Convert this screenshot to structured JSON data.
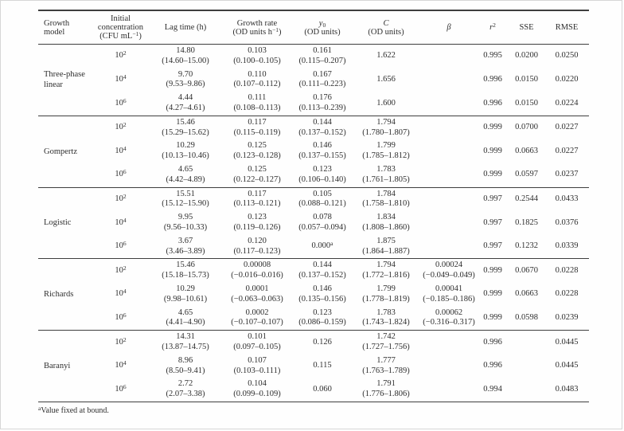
{
  "header": {
    "model": {
      "line1": "Growth",
      "line2": "model"
    },
    "concentration": {
      "line1": "Initial",
      "line2": "concentration",
      "line3_pre": "(CFU mL",
      "line3_sup": "−1",
      "line3_post": ")"
    },
    "lag_time": "Lag time (h)",
    "growth_rate": {
      "line1": "Growth rate",
      "line2_pre": "(OD units h",
      "line2_sup": "−1",
      "line2_post": ")"
    },
    "y0": {
      "symbol": "y",
      "subscript": "0",
      "line2": "(OD units)"
    },
    "c": {
      "symbol": "C",
      "line2": "(OD units)"
    },
    "beta": "β",
    "r2": {
      "symbol": "r",
      "superscript": "2"
    },
    "sse": "SSE",
    "rmse": "RMSE"
  },
  "groups": [
    {
      "model": "Three-phase linear",
      "rows": [
        {
          "conc": "10^2",
          "lag": {
            "v": "14.80",
            "ci": "(14.60–15.00)"
          },
          "rate": {
            "v": "0.103",
            "ci": "(0.100–0.105)"
          },
          "y0": {
            "v": "0.161",
            "ci": "(0.115–0.207)"
          },
          "c": "1.622",
          "beta": "",
          "r2": "0.995",
          "sse": "0.0200",
          "rmse": "0.0250"
        },
        {
          "conc": "10^4",
          "lag": {
            "v": "9.70",
            "ci": "(9.53–9.86)"
          },
          "rate": {
            "v": "0.110",
            "ci": "(0.107–0.112)"
          },
          "y0": {
            "v": "0.167",
            "ci": "(0.111–0.223)"
          },
          "c": "1.656",
          "beta": "",
          "r2": "0.996",
          "sse": "0.0150",
          "rmse": "0.0220"
        },
        {
          "conc": "10^6",
          "lag": {
            "v": "4.44",
            "ci": "(4.27–4.61)"
          },
          "rate": {
            "v": "0.111",
            "ci": "(0.108–0.113)"
          },
          "y0": {
            "v": "0.176",
            "ci": "(0.113–0.239)"
          },
          "c": "1.600",
          "beta": "",
          "r2": "0.996",
          "sse": "0.0150",
          "rmse": "0.0224"
        }
      ]
    },
    {
      "model": "Gompertz",
      "rows": [
        {
          "conc": "10^2",
          "lag": {
            "v": "15.46",
            "ci": "(15.29–15.62)"
          },
          "rate": {
            "v": "0.117",
            "ci": "(0.115–0.119)"
          },
          "y0": {
            "v": "0.144",
            "ci": "(0.137–0.152)"
          },
          "c": {
            "v": "1.794",
            "ci": "(1.780–1.807)"
          },
          "beta": "",
          "r2": "0.999",
          "sse": "0.0700",
          "rmse": "0.0227"
        },
        {
          "conc": "10^4",
          "lag": {
            "v": "10.29",
            "ci": "(10.13–10.46)"
          },
          "rate": {
            "v": "0.125",
            "ci": "(0.123–0.128)"
          },
          "y0": {
            "v": "0.146",
            "ci": "(0.137–0.155)"
          },
          "c": {
            "v": "1.799",
            "ci": "(1.785–1.812)"
          },
          "beta": "",
          "r2": "0.999",
          "sse": "0.0663",
          "rmse": "0.0227"
        },
        {
          "conc": "10^6",
          "lag": {
            "v": "4.65",
            "ci": "(4.42–4.89)"
          },
          "rate": {
            "v": "0.125",
            "ci": "(0.122–0.127)"
          },
          "y0": {
            "v": "0.123",
            "ci": "(0.106–0.140)"
          },
          "c": {
            "v": "1.783",
            "ci": "(1.761–1.805)"
          },
          "beta": "",
          "r2": "0.999",
          "sse": "0.0597",
          "rmse": "0.0237"
        }
      ]
    },
    {
      "model": "Logistic",
      "rows": [
        {
          "conc": "10^2",
          "lag": {
            "v": "15.51",
            "ci": "(15.12–15.90)"
          },
          "rate": {
            "v": "0.117",
            "ci": "(0.113–0.121)"
          },
          "y0": {
            "v": "0.105",
            "ci": "(0.088–0.121)"
          },
          "c": {
            "v": "1.784",
            "ci": "(1.758–1.810)"
          },
          "beta": "",
          "r2": "0.997",
          "sse": "0.2544",
          "rmse": "0.0433"
        },
        {
          "conc": "10^4",
          "lag": {
            "v": "9.95",
            "ci": "(9.56–10.33)"
          },
          "rate": {
            "v": "0.123",
            "ci": "(0.119–0.126)"
          },
          "y0": {
            "v": "0.078",
            "ci": "(0.057–0.094)"
          },
          "c": {
            "v": "1.834",
            "ci": "(1.808–1.860)"
          },
          "beta": "",
          "r2": "0.997",
          "sse": "0.1825",
          "rmse": "0.0376"
        },
        {
          "conc": "10^6",
          "lag": {
            "v": "3.67",
            "ci": "(3.46–3.89)"
          },
          "rate": {
            "v": "0.120",
            "ci": "(0.117–0.123)"
          },
          "y0": "0.000^a",
          "c": {
            "v": "1.875",
            "ci": "(1.864–1.887)"
          },
          "beta": "",
          "r2": "0.997",
          "sse": "0.1232",
          "rmse": "0.0339"
        }
      ]
    },
    {
      "model": "Richards",
      "rows": [
        {
          "conc": "10^2",
          "lag": {
            "v": "15.46",
            "ci": "(15.18–15.73)"
          },
          "rate": {
            "v": "0.00008",
            "ci": "(−0.016–0.016)"
          },
          "y0": {
            "v": "0.144",
            "ci": "(0.137–0.152)"
          },
          "c": {
            "v": "1.794",
            "ci": "(1.772–1.816)"
          },
          "beta": {
            "v": "0.00024",
            "ci": "(−0.049–0.049)"
          },
          "r2": "0.999",
          "sse": "0.0670",
          "rmse": "0.0228"
        },
        {
          "conc": "10^4",
          "lag": {
            "v": "10.29",
            "ci": "(9.98–10.61)"
          },
          "rate": {
            "v": "0.0001",
            "ci": "(−0.063–0.063)"
          },
          "y0": {
            "v": "0.146",
            "ci": "(0.135–0.156)"
          },
          "c": {
            "v": "1.799",
            "ci": "(1.778–1.819)"
          },
          "beta": {
            "v": "0.00041",
            "ci": "(−0.185–0.186)"
          },
          "r2": "0.999",
          "sse": "0.0663",
          "rmse": "0.0228"
        },
        {
          "conc": "10^6",
          "lag": {
            "v": "4.65",
            "ci": "(4.41–4.90)"
          },
          "rate": {
            "v": "0.0002",
            "ci": "(−0.107–0.107)"
          },
          "y0": {
            "v": "0.123",
            "ci": "(0.086–0.159)"
          },
          "c": {
            "v": "1.783",
            "ci": "(1.743–1.824)"
          },
          "beta": {
            "v": "0.00062",
            "ci": "(−0.316–0.317)"
          },
          "r2": "0.999",
          "sse": "0.0598",
          "rmse": "0.0239"
        }
      ]
    },
    {
      "model": "Baranyi",
      "rows": [
        {
          "conc": "10^2",
          "lag": {
            "v": "14.31",
            "ci": "(13.87–14.75)"
          },
          "rate": {
            "v": "0.101",
            "ci": "(0.097–0.105)"
          },
          "y0": "0.126",
          "c": {
            "v": "1.742",
            "ci": "(1.727–1.756)"
          },
          "beta": "",
          "r2": "0.996",
          "sse": "",
          "rmse": "0.0445"
        },
        {
          "conc": "10^4",
          "lag": {
            "v": "8.96",
            "ci": "(8.50–9.41)"
          },
          "rate": {
            "v": "0.107",
            "ci": "(0.103–0.111)"
          },
          "y0": "0.115",
          "c": {
            "v": "1.777",
            "ci": "(1.763–1.789)"
          },
          "beta": "",
          "r2": "0.996",
          "sse": "",
          "rmse": "0.0445"
        },
        {
          "conc": "10^6",
          "lag": {
            "v": "2.72",
            "ci": "(2.07–3.38)"
          },
          "rate": {
            "v": "0.104",
            "ci": "(0.099–0.109)"
          },
          "y0": "0.060",
          "c": {
            "v": "1.791",
            "ci": "(1.776–1.806)"
          },
          "beta": "",
          "r2": "0.994",
          "sse": "",
          "rmse": "0.0483"
        }
      ]
    }
  ],
  "footnote": {
    "sup": "a",
    "text": "Value fixed at bound."
  }
}
